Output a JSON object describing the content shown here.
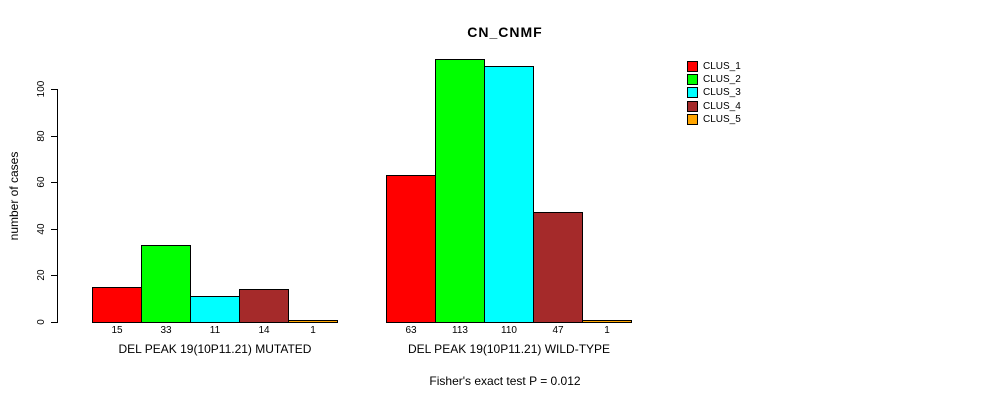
{
  "figure": {
    "title": "CN_CNMF",
    "ylabel": "number of cases",
    "footnote": "Fisher's exact test P = 0.012"
  },
  "chart_data": {
    "type": "bar",
    "title": "CN_CNMF",
    "ylabel": "number of cases",
    "xlabel": "",
    "footnote": "Fisher's exact test P = 0.012",
    "grid": false,
    "legend_position": "right",
    "yticks": [
      0,
      20,
      40,
      60,
      80,
      100
    ],
    "ylim": [
      0,
      113
    ],
    "categories": [
      "DEL PEAK 19(10P11.21) MUTATED",
      "DEL PEAK 19(10P11.21) WILD-TYPE"
    ],
    "series": [
      {
        "name": "CLUS_1",
        "color": "#FF0000",
        "values": [
          15,
          63
        ]
      },
      {
        "name": "CLUS_2",
        "color": "#00FF00",
        "values": [
          33,
          113
        ]
      },
      {
        "name": "CLUS_3",
        "color": "#00FFFF",
        "values": [
          11,
          110
        ]
      },
      {
        "name": "CLUS_4",
        "color": "#A52A2A",
        "values": [
          14,
          47
        ]
      },
      {
        "name": "CLUS_5",
        "color": "#FFA500",
        "values": [
          1,
          1
        ]
      }
    ],
    "bar_value_labels": [
      [
        15,
        33,
        11,
        14,
        1
      ],
      [
        63,
        113,
        110,
        47,
        1
      ]
    ]
  }
}
